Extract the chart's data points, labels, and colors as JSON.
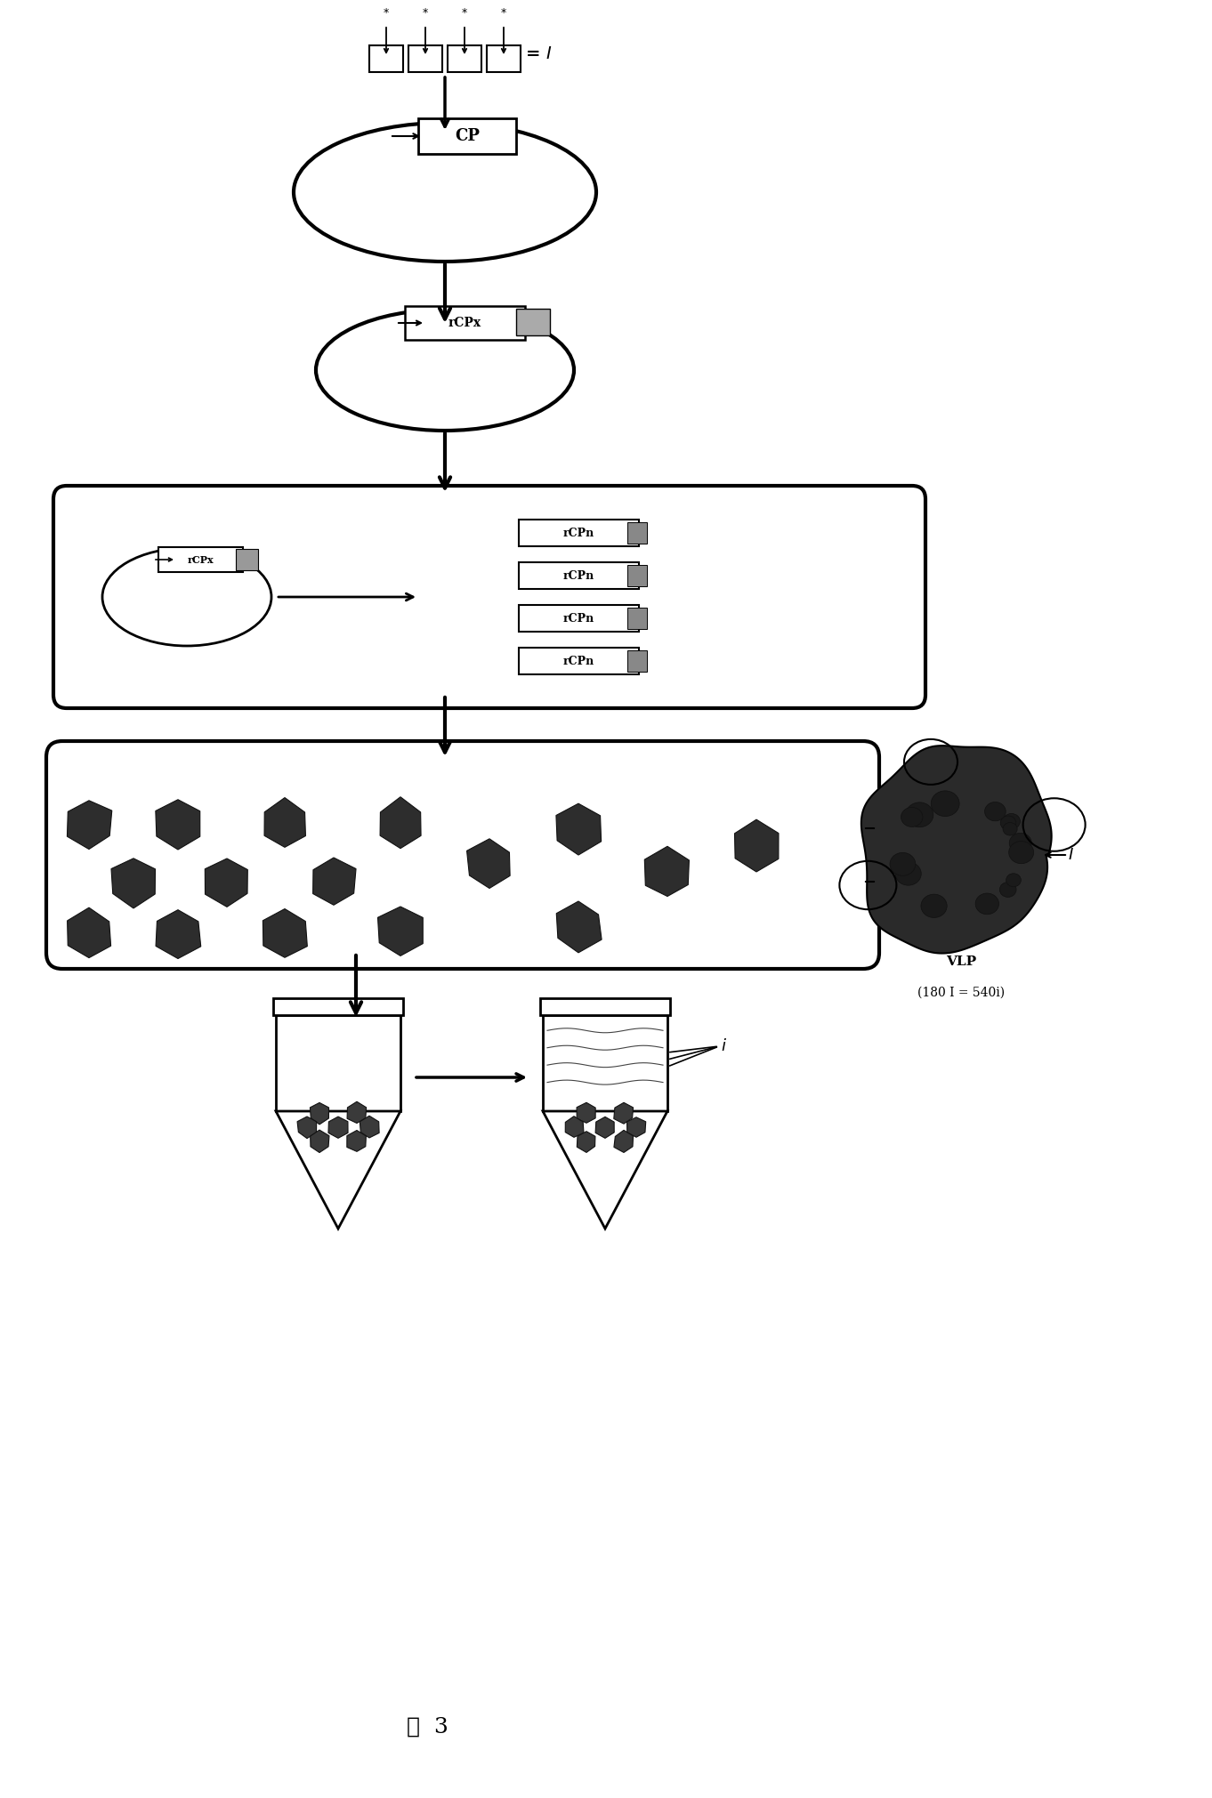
{
  "bg_color": "#ffffff",
  "black": "#000000",
  "figure_label": "图  3",
  "cp_text": "CP",
  "rcp_text": "rCPx",
  "rcp_variants": [
    "rCPn",
    "rCPn",
    "rCPn",
    "rCPn"
  ],
  "I_label": "= I",
  "i_label": "i",
  "vlp_line1": "VLP",
  "vlp_line2": "(180 I = 540i)"
}
